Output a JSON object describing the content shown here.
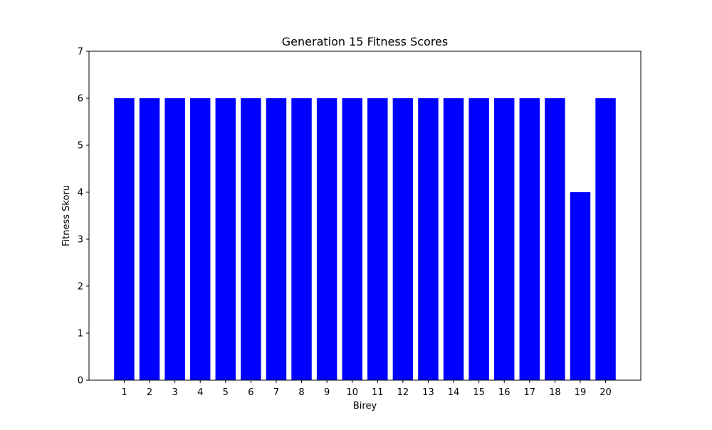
{
  "chart_data": {
    "type": "bar",
    "title": "Generation 15 Fitness Scores",
    "xlabel": "Birey",
    "ylabel": "Fitness Skoru",
    "categories": [
      "1",
      "2",
      "3",
      "4",
      "5",
      "6",
      "7",
      "8",
      "9",
      "10",
      "11",
      "12",
      "13",
      "14",
      "15",
      "16",
      "17",
      "18",
      "19",
      "20"
    ],
    "values": [
      6,
      6,
      6,
      6,
      6,
      6,
      6,
      6,
      6,
      6,
      6,
      6,
      6,
      6,
      6,
      6,
      6,
      6,
      4,
      6
    ],
    "ylim": [
      0,
      7
    ],
    "yticks": [
      "0",
      "1",
      "2",
      "3",
      "4",
      "5",
      "6",
      "7"
    ],
    "grid": false,
    "legend": "none",
    "bar_color": "#0000ff"
  }
}
